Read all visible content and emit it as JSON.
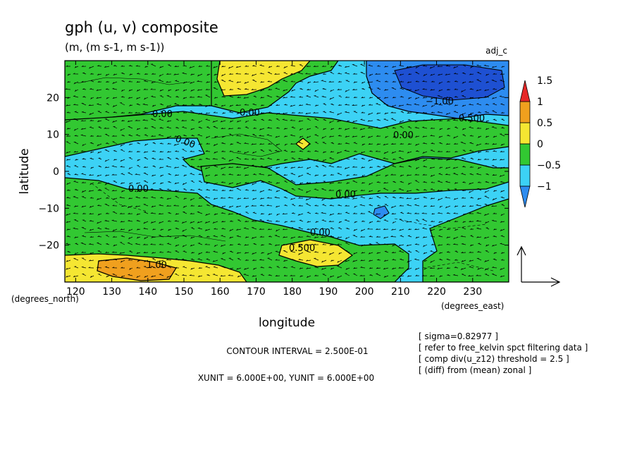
{
  "chart_data": {
    "type": "heatmap",
    "title": "gph (u, v) composite",
    "subtitle": "(m, (m s-1, m s-1))",
    "tag": "adj_c",
    "xlabel": "longitude",
    "ylabel": "latitude",
    "x_unit_label": "(degrees_east)",
    "y_unit_label": "(degrees_north)",
    "xlim": [
      117,
      240
    ],
    "ylim": [
      -30,
      30
    ],
    "x_ticks": [
      120,
      130,
      140,
      150,
      160,
      170,
      180,
      190,
      200,
      210,
      220,
      230
    ],
    "y_ticks": [
      -20,
      -10,
      0,
      10,
      20
    ],
    "x_tick_labels": [
      "120",
      "130",
      "140",
      "150",
      "160",
      "170",
      "180",
      "190",
      "200",
      "210",
      "220",
      "230"
    ],
    "y_tick_labels": [
      "−20",
      "−10",
      "0",
      "10",
      "20"
    ],
    "colorbar": {
      "levels": [
        -1,
        -0.5,
        0,
        0.5,
        1,
        1.5
      ],
      "labels": [
        "−1",
        "−0.5",
        "0",
        "0.5",
        "1",
        "1.5"
      ],
      "colors": [
        "#1e6fe6",
        "#3cc3f5",
        "#5bd24b",
        "#1ec81e",
        "#f5e61e",
        "#f5a01e",
        "#e61e1e"
      ],
      "bin_colors": [
        "#2d8cf0",
        "#3cd2f5",
        "#32c832",
        "#f5e632",
        "#f0a01e",
        "#e62828"
      ]
    },
    "contour_labels": [
      "0.00",
      "0.00",
      "0.00",
      "0.00",
      "0.00",
      "0.00",
      "0.00",
      "0.500",
      "1.00",
      "−1.00",
      "−0.500"
    ],
    "contour_interval_text": "CONTOUR INTERVAL = 2.500E-01",
    "vector_units_text": "XUNIT = 6.000E+00, YUNIT = 6.000E+00",
    "info_lines": [
      "[ sigma=0.82977 ]",
      "[ refer to free_kelvin spct filtering data ]",
      "[ comp div(u_z12) threshold = 2.5 ]",
      "[ (diff) from (mean) zonal ]"
    ],
    "grid": false,
    "legend_position": "right"
  }
}
